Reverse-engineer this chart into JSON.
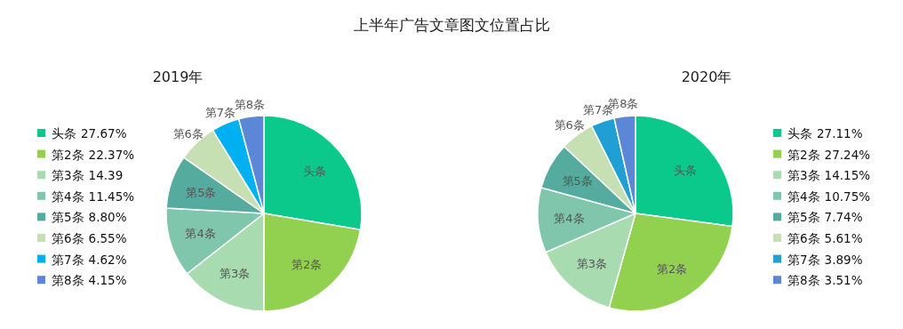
{
  "chart_data": [
    {
      "type": "pie",
      "title": "上半年广告文章图文位置占比",
      "subtitle": "2019年",
      "legend": "left",
      "categories": [
        "头条",
        "第2条",
        "第3条",
        "第4条",
        "第5条",
        "第6条",
        "第7条",
        "第8条"
      ],
      "values": [
        27.67,
        22.37,
        14.39,
        11.45,
        8.8,
        6.55,
        4.62,
        4.15
      ],
      "value_labels": [
        "27.67%",
        "22.37%",
        "14.39",
        "11.45%",
        "8.80%",
        "6.55%",
        "4.62%",
        "4.15%"
      ],
      "colors": [
        "#0bc98b",
        "#92d050",
        "#a8dcb0",
        "#7fc6ac",
        "#55ab9e",
        "#c6e0b4",
        "#00b0f0",
        "#5b87d6"
      ]
    },
    {
      "type": "pie",
      "subtitle": "2020年",
      "legend": "right",
      "categories": [
        "头条",
        "第2条",
        "第3条",
        "第4条",
        "第5条",
        "第6条",
        "第7条",
        "第8条"
      ],
      "values": [
        27.11,
        27.24,
        14.15,
        10.75,
        7.74,
        5.61,
        3.89,
        3.51
      ],
      "value_labels": [
        "27.11%",
        "27.24%",
        "14.15%",
        "10.75%",
        "7.74%",
        "5.61%",
        "3.89%",
        "3.51%"
      ],
      "colors": [
        "#0bc98b",
        "#92d050",
        "#a8dcb0",
        "#7fc6ac",
        "#55ab9e",
        "#c6e0b4",
        "#1f9fd4",
        "#5b87d6"
      ]
    }
  ]
}
